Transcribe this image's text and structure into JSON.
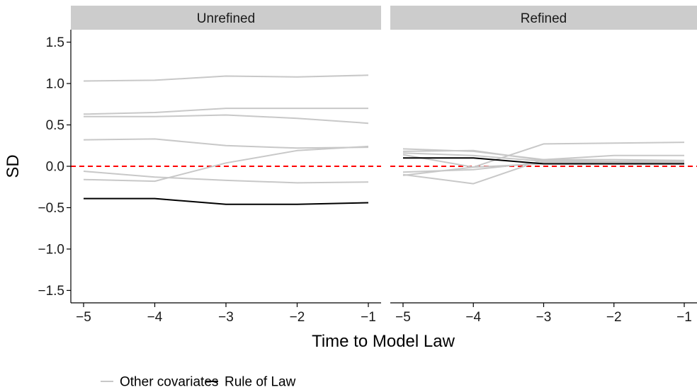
{
  "chart_data": {
    "type": "line",
    "xlabel": "Time to Model Law",
    "ylabel": "SD",
    "x": [
      -5,
      -4,
      -3,
      -2,
      -1
    ],
    "xticks": [
      "−5",
      "−4",
      "−3",
      "−2",
      "−1"
    ],
    "yticks": [
      1.5,
      1.0,
      0.5,
      0.0,
      -0.5,
      -1.0,
      -1.5
    ],
    "ytick_labels": [
      "1.5",
      "1.0",
      "0.5",
      "0.0",
      "−0.5",
      "−1.0",
      "−1.5"
    ],
    "ylim": [
      -1.65,
      1.65
    ],
    "reference_line": {
      "y": 0,
      "color": "#ff0000",
      "style": "dashed"
    },
    "grid": false,
    "legend": {
      "position": "bottom",
      "entries": [
        {
          "name": "Other covariates",
          "color": "#c8c8c8"
        },
        {
          "name": "Rule of Law",
          "color": "#000000"
        }
      ]
    },
    "panels": [
      {
        "title": "Unrefined",
        "series": [
          {
            "group": "Other covariates",
            "values": [
              1.03,
              1.04,
              1.09,
              1.08,
              1.1
            ]
          },
          {
            "group": "Other covariates",
            "values": [
              0.63,
              0.65,
              0.7,
              0.7,
              0.7
            ]
          },
          {
            "group": "Other covariates",
            "values": [
              0.6,
              0.6,
              0.62,
              0.58,
              0.52
            ]
          },
          {
            "group": "Other covariates",
            "values": [
              0.32,
              0.33,
              0.25,
              0.22,
              0.23
            ]
          },
          {
            "group": "Other covariates",
            "values": [
              -0.06,
              -0.13,
              -0.17,
              -0.2,
              -0.19
            ]
          },
          {
            "group": "Other covariates",
            "values": [
              -0.16,
              -0.18,
              0.04,
              0.19,
              0.24
            ]
          },
          {
            "group": "Rule of Law",
            "values": [
              -0.39,
              -0.39,
              -0.46,
              -0.46,
              -0.44
            ]
          }
        ]
      },
      {
        "title": "Refined",
        "series": [
          {
            "group": "Other covariates",
            "values": [
              0.21,
              0.18,
              0.08,
              0.08,
              0.07
            ]
          },
          {
            "group": "Other covariates",
            "values": [
              0.18,
              0.19,
              0.07,
              0.06,
              0.06
            ]
          },
          {
            "group": "Other covariates",
            "values": [
              0.16,
              0.13,
              0.06,
              0.05,
              0.05
            ]
          },
          {
            "group": "Other covariates",
            "values": [
              0.14,
              -0.01,
              0.27,
              0.28,
              0.29
            ]
          },
          {
            "group": "Other covariates",
            "values": [
              -0.1,
              -0.21,
              0.08,
              0.13,
              0.13
            ]
          },
          {
            "group": "Other covariates",
            "values": [
              -0.07,
              -0.04,
              0.05,
              0.04,
              0.04
            ]
          },
          {
            "group": "Other covariates",
            "values": [
              -0.11,
              -0.01,
              0.03,
              0.03,
              0.03
            ]
          },
          {
            "group": "Rule of Law",
            "values": [
              0.1,
              0.1,
              0.03,
              0.03,
              0.03
            ]
          }
        ]
      }
    ]
  }
}
